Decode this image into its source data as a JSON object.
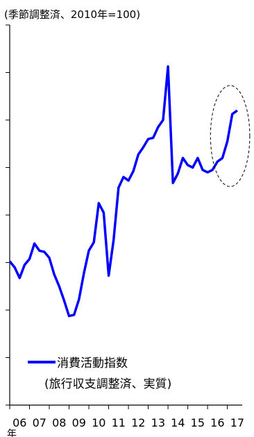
{
  "chart_data": {
    "type": "line",
    "unit_note": "(季節調整済、2010年=100)",
    "x_label": "年",
    "x_tick_labels": [
      "06",
      "07",
      "08",
      "09",
      "10",
      "11",
      "12",
      "13",
      "14",
      "15",
      "16",
      "17"
    ],
    "x_range": [
      2006.0,
      2017.75
    ],
    "y_range": [
      84,
      116
    ],
    "y_gridlines": "off",
    "legend": {
      "placement": "bottom-left",
      "line1": "消費活動指数",
      "line2": "(旅行収支調整済、実質)"
    },
    "series": [
      {
        "color": "#0000ff",
        "x": [
          2006.0,
          2006.25,
          2006.5,
          2006.75,
          2007.0,
          2007.25,
          2007.5,
          2007.75,
          2008.0,
          2008.25,
          2008.5,
          2008.75,
          2009.0,
          2009.25,
          2009.5,
          2009.75,
          2010.0,
          2010.25,
          2010.5,
          2010.75,
          2011.0,
          2011.25,
          2011.5,
          2011.75,
          2012.0,
          2012.25,
          2012.5,
          2012.75,
          2013.0,
          2013.25,
          2013.5,
          2013.75,
          2014.0,
          2014.25,
          2014.5,
          2014.75,
          2015.0,
          2015.25,
          2015.5,
          2015.75,
          2016.0,
          2016.25,
          2016.5,
          2016.75,
          2017.0,
          2017.25,
          2017.5
        ],
        "y": [
          96.1,
          95.6,
          94.7,
          95.8,
          96.3,
          97.6,
          97.0,
          96.9,
          96.4,
          95.0,
          94.0,
          92.8,
          91.5,
          91.6,
          92.9,
          95.1,
          97.0,
          97.7,
          101.0,
          100.2,
          94.9,
          97.9,
          102.3,
          103.2,
          102.9,
          103.7,
          105.1,
          105.7,
          106.4,
          106.5,
          107.4,
          108.0,
          112.5,
          102.7,
          103.5,
          104.8,
          104.2,
          104.0,
          104.8,
          103.8,
          103.6,
          103.8,
          104.5,
          104.8,
          106.2,
          108.5,
          108.8
        ],
        "highlight_from_x": 2016.5
      }
    ]
  }
}
